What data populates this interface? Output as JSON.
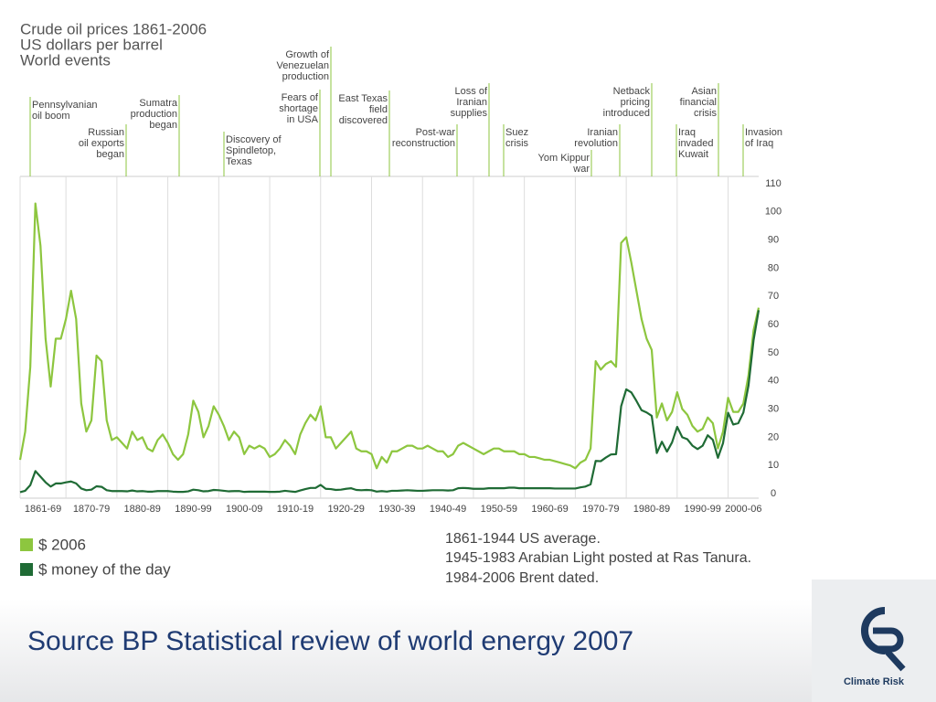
{
  "chart_data": {
    "type": "line",
    "title": "Crude oil prices 1861-2006",
    "subtitle": "US dollars per barrel",
    "annotations_title": "World events",
    "annotations": [
      "Pennsylvanian\noil boom",
      "Russian\noil exports\nbegan",
      "Sumatra\nproduction\nbegan",
      "Discovery of\nSpindletop,\nTexas",
      "Fears of\nshortage\nin USA",
      "Growth of\nVenezuelan\nproduction",
      "East Texas\nfield\ndiscovered",
      "Post-war\nreconstruction",
      "Loss of\nIranian\nsupplies",
      "Suez\ncrisis",
      "Yom Kippur\nwar",
      "Iranian\nrevolution",
      "Netback\npricing\nintroduced",
      "Asian\nfinancial\ncrisis",
      "Iraq\ninvaded\nKuwait",
      "Invasion\nof Iraq"
    ],
    "notes": [
      "1861-1944 US average.",
      "1945-1983 Arabian Light posted at Ras Tanura.",
      "1984-2006 Brent dated."
    ],
    "xlim": [
      1861,
      2006
    ],
    "xticks": [
      {
        "value": 1861,
        "label": "1861-69"
      },
      {
        "value": 1870,
        "label": "1870-79"
      },
      {
        "value": 1880,
        "label": "1880-89"
      },
      {
        "value": 1890,
        "label": "1890-99"
      },
      {
        "value": 1900,
        "label": "1900-09"
      },
      {
        "value": 1910,
        "label": "1910-19"
      },
      {
        "value": 1920,
        "label": "1920-29"
      },
      {
        "value": 1930,
        "label": "1930-39"
      },
      {
        "value": 1940,
        "label": "1940-49"
      },
      {
        "value": 1950,
        "label": "1950-59"
      },
      {
        "value": 1960,
        "label": "1960-69"
      },
      {
        "value": 1970,
        "label": "1970-79"
      },
      {
        "value": 1980,
        "label": "1980-89"
      },
      {
        "value": 1990,
        "label": "1990-99"
      },
      {
        "value": 2000,
        "label": "2000-06"
      }
    ],
    "ylim": [
      0,
      110
    ],
    "yticks": [
      0,
      10,
      20,
      30,
      40,
      50,
      60,
      70,
      80,
      90,
      100,
      110
    ],
    "grid": true,
    "x": [
      1861,
      1862,
      1863,
      1864,
      1865,
      1866,
      1867,
      1868,
      1869,
      1870,
      1871,
      1872,
      1873,
      1874,
      1875,
      1876,
      1877,
      1878,
      1879,
      1880,
      1881,
      1882,
      1883,
      1884,
      1885,
      1886,
      1887,
      1888,
      1889,
      1890,
      1891,
      1892,
      1893,
      1894,
      1895,
      1896,
      1897,
      1898,
      1899,
      1900,
      1901,
      1902,
      1903,
      1904,
      1905,
      1906,
      1907,
      1908,
      1909,
      1910,
      1911,
      1912,
      1913,
      1914,
      1915,
      1916,
      1917,
      1918,
      1919,
      1920,
      1921,
      1922,
      1923,
      1924,
      1925,
      1926,
      1927,
      1928,
      1929,
      1930,
      1931,
      1932,
      1933,
      1934,
      1935,
      1936,
      1937,
      1938,
      1939,
      1940,
      1941,
      1942,
      1943,
      1944,
      1945,
      1946,
      1947,
      1948,
      1949,
      1950,
      1951,
      1952,
      1953,
      1954,
      1955,
      1956,
      1957,
      1958,
      1959,
      1960,
      1961,
      1962,
      1963,
      1964,
      1965,
      1966,
      1967,
      1968,
      1969,
      1970,
      1971,
      1972,
      1973,
      1974,
      1975,
      1976,
      1977,
      1978,
      1979,
      1980,
      1981,
      1982,
      1983,
      1984,
      1985,
      1986,
      1987,
      1988,
      1989,
      1990,
      1991,
      1992,
      1993,
      1994,
      1995,
      1996,
      1997,
      1998,
      1999,
      2000,
      2001,
      2002,
      2003,
      2004,
      2005,
      2006
    ],
    "series": [
      {
        "name": "$ 2006",
        "color": "#8dc63f",
        "values": [
          12,
          22,
          45,
          103,
          88,
          55,
          38,
          55,
          55,
          62,
          72,
          62,
          32,
          22,
          26,
          49,
          47,
          26,
          19,
          20,
          18,
          16,
          22,
          19,
          20,
          16,
          15,
          19,
          21,
          18,
          14,
          12,
          14,
          21,
          33,
          29,
          20,
          24,
          31,
          28,
          24,
          19,
          22,
          20,
          14,
          17,
          16,
          17,
          16,
          13,
          14,
          16,
          19,
          17,
          14,
          21,
          25,
          28,
          26,
          31,
          20,
          20,
          16,
          18,
          20,
          22,
          16,
          15,
          15,
          14,
          9,
          13,
          11,
          15,
          15,
          16,
          17,
          17,
          16,
          16,
          17,
          16,
          15,
          15,
          13,
          14,
          17,
          18,
          17,
          16,
          15,
          14,
          15,
          16,
          16,
          15,
          15,
          15,
          14,
          14,
          13,
          13,
          12.5,
          12,
          12,
          11.5,
          11,
          10.5,
          10,
          9,
          11,
          12,
          16,
          47,
          44,
          46,
          47,
          45,
          89,
          91,
          82,
          72,
          62,
          55,
          51,
          27,
          32,
          26,
          29,
          36,
          30,
          28,
          24,
          22,
          23,
          27,
          25,
          16,
          22,
          34,
          29,
          29,
          32,
          42,
          58,
          66
        ]
      },
      {
        "name": "$ money of the day",
        "color": "#1f6b35",
        "values": [
          0.5,
          1,
          3,
          8,
          6,
          4,
          2.5,
          3.6,
          3.6,
          4,
          4.3,
          3.6,
          1.8,
          1.2,
          1.4,
          2.6,
          2.4,
          1.2,
          0.9,
          0.9,
          0.9,
          0.8,
          1.1,
          0.8,
          0.9,
          0.7,
          0.7,
          0.9,
          0.9,
          0.9,
          0.7,
          0.6,
          0.6,
          0.8,
          1.4,
          1.2,
          0.8,
          0.9,
          1.3,
          1.2,
          1,
          0.8,
          0.9,
          0.9,
          0.6,
          0.7,
          0.7,
          0.7,
          0.7,
          0.6,
          0.6,
          0.7,
          1,
          0.8,
          0.6,
          1.1,
          1.6,
          2,
          2,
          3.1,
          1.7,
          1.6,
          1.3,
          1.4,
          1.7,
          1.9,
          1.3,
          1.2,
          1.3,
          1.2,
          0.7,
          0.9,
          0.7,
          1,
          1,
          1.1,
          1.2,
          1.1,
          1,
          1,
          1.1,
          1.2,
          1.2,
          1.2,
          1.1,
          1.2,
          1.9,
          2,
          1.9,
          1.7,
          1.7,
          1.7,
          1.9,
          1.9,
          1.9,
          1.9,
          2.1,
          2.1,
          1.9,
          1.9,
          1.9,
          1.9,
          1.9,
          1.9,
          1.9,
          1.8,
          1.8,
          1.8,
          1.8,
          1.8,
          2.2,
          2.5,
          3.3,
          11.6,
          11.5,
          12.8,
          13.9,
          14,
          31,
          37,
          35.9,
          32.9,
          29.6,
          28.8,
          27.6,
          14.4,
          18.4,
          14.9,
          18.2,
          23.7,
          20,
          19.3,
          17,
          15.8,
          17,
          20.7,
          19.1,
          12.7,
          17.9,
          28.7,
          24.5,
          25,
          28.8,
          38.3,
          54.5,
          65.1
        ]
      }
    ]
  },
  "footer": {
    "source": "Source BP Statistical review of world energy 2007",
    "logo": "Climate Risk"
  }
}
